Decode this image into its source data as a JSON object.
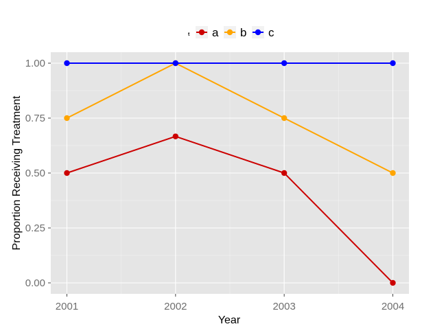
{
  "chart_data": {
    "type": "line",
    "x": [
      "2001",
      "2002",
      "2003",
      "2004"
    ],
    "series": [
      {
        "name": "a",
        "color": "#cc0000",
        "values": [
          0.5,
          0.6667,
          0.5,
          0.0
        ]
      },
      {
        "name": "b",
        "color": "#ffa500",
        "values": [
          0.75,
          1.0,
          0.75,
          0.5
        ]
      },
      {
        "name": "c",
        "color": "#0000ff",
        "values": [
          1.0,
          1.0,
          1.0,
          1.0
        ]
      }
    ],
    "xlabel": "Year",
    "ylabel": "Proportion Receiving Treatment",
    "ylim": [
      -0.05,
      1.05
    ],
    "yticks": [
      "0.00",
      "0.25",
      "0.50",
      "0.75",
      "1.00"
    ],
    "legend_title": "t",
    "legend_position": "top",
    "grid": true,
    "panel_background": "#e5e5e5",
    "grid_color": "#ffffff"
  }
}
